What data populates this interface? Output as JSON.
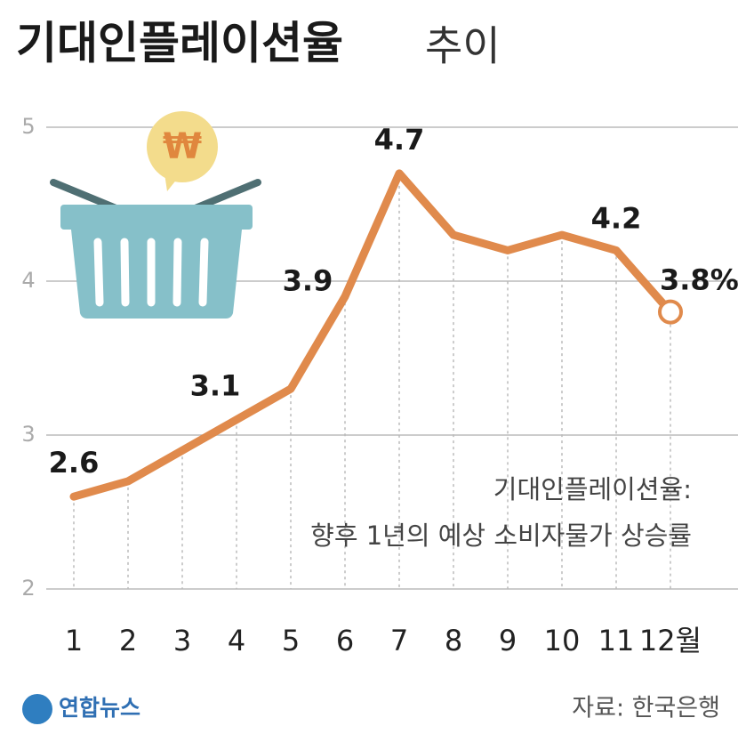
{
  "chart_data": {
    "type": "line",
    "title": "기대인플레이션율",
    "title_suffix": "추이",
    "categories": [
      "1",
      "2",
      "3",
      "4",
      "5",
      "6",
      "7",
      "8",
      "9",
      "10",
      "11",
      "12월"
    ],
    "series": [
      {
        "name": "기대인플레이션율",
        "color": "#e08a4c",
        "values": [
          2.6,
          2.7,
          2.9,
          3.1,
          3.3,
          3.9,
          4.7,
          4.3,
          4.2,
          4.3,
          4.2,
          3.8
        ],
        "value_labels": [
          "2.6",
          null,
          null,
          "3.1",
          null,
          "3.9",
          "4.7",
          null,
          null,
          null,
          "4.2",
          "3.8%"
        ]
      }
    ],
    "ylim": [
      2,
      5
    ],
    "yticks": [
      2,
      3,
      4,
      5
    ],
    "grid": true,
    "annotation": [
      "기대인플레이션율:",
      "향후 1년의 예상 소비자물가 상승률"
    ],
    "logo": "연합뉴스",
    "source": "자료: 한국은행"
  }
}
